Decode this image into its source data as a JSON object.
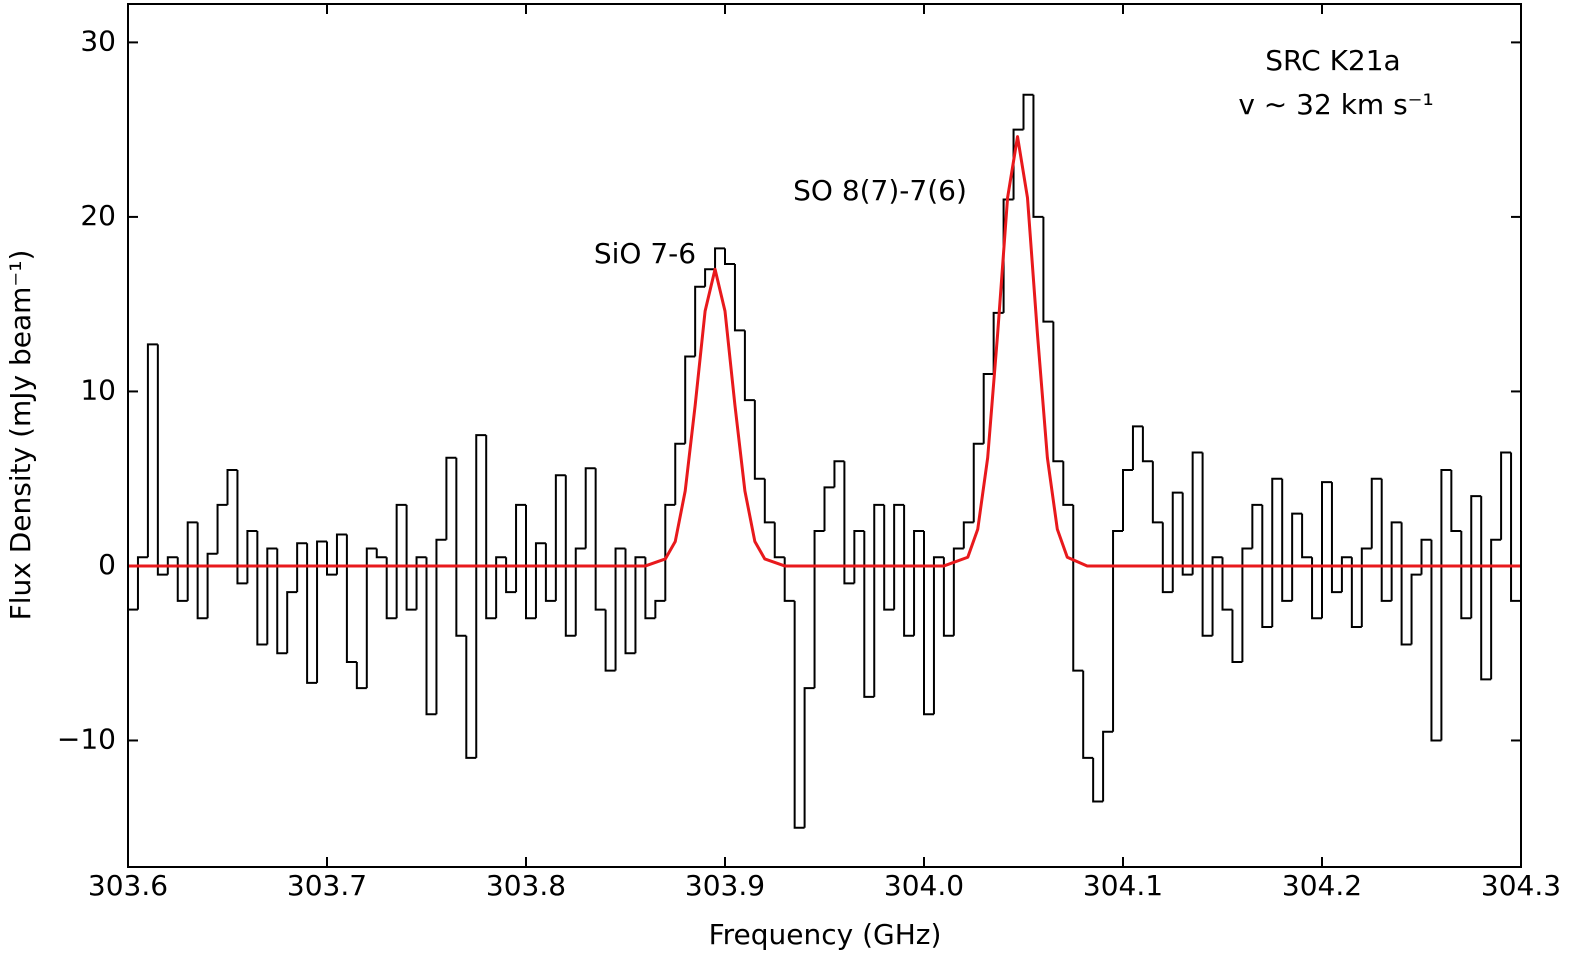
{
  "chart_data": {
    "type": "spectrum",
    "xlabel": "Frequency (GHz)",
    "ylabel": "Flux Density (mJy beam⁻¹)",
    "annotations": [
      "SiO 7-6",
      "SO 8(7)-7(6)",
      "SRC K21a",
      "v ∼ 32 km s⁻¹"
    ],
    "xlim": [
      303.6,
      304.3
    ],
    "ylim": [
      -17.25,
      32.2
    ],
    "xticks": [
      303.6,
      303.7,
      303.8,
      303.9,
      {
        "value": 304,
        "label": "304.0"
      },
      304.1,
      304.2,
      304.3
    ],
    "yticks": [
      {
        "value": -10,
        "label": "−10"
      },
      0,
      10,
      20,
      30
    ],
    "spectrum": {
      "color": "#000000",
      "bins": [
        303.6,
        303.605,
        303.61,
        303.615,
        303.62,
        303.625,
        303.63,
        303.635,
        303.64,
        303.645,
        303.65,
        303.655,
        303.66,
        303.665,
        303.67,
        303.675,
        303.68,
        303.685,
        303.69,
        303.695,
        303.7,
        303.705,
        303.71,
        303.715,
        303.72,
        303.725,
        303.73,
        303.735,
        303.74,
        303.745,
        303.75,
        303.755,
        303.76,
        303.765,
        303.77,
        303.775,
        303.78,
        303.785,
        303.79,
        303.795,
        303.8,
        303.805,
        303.81,
        303.815,
        303.82,
        303.825,
        303.83,
        303.835,
        303.84,
        303.845,
        303.85,
        303.855,
        303.86,
        303.865,
        303.87,
        303.875,
        303.88,
        303.885,
        303.89,
        303.895,
        303.9,
        303.905,
        303.91,
        303.915,
        303.92,
        303.925,
        303.93,
        303.935,
        303.94,
        303.945,
        303.95,
        303.955,
        303.96,
        303.965,
        303.97,
        303.975,
        303.98,
        303.985,
        303.99,
        303.995,
        304.0,
        304.005,
        304.01,
        304.015,
        304.02,
        304.025,
        304.03,
        304.035,
        304.04,
        304.045,
        304.05,
        304.055,
        304.06,
        304.065,
        304.07,
        304.075,
        304.08,
        304.085,
        304.09,
        304.095,
        304.1,
        304.105,
        304.11,
        304.115,
        304.12,
        304.125,
        304.13,
        304.135,
        304.14,
        304.145,
        304.15,
        304.155,
        304.16,
        304.165,
        304.17,
        304.175,
        304.18,
        304.185,
        304.19,
        304.195,
        304.2,
        304.205,
        304.21,
        304.215,
        304.22,
        304.225,
        304.23,
        304.235,
        304.24,
        304.245,
        304.25,
        304.255,
        304.26,
        304.265,
        304.27,
        304.275,
        304.28,
        304.285,
        304.29,
        304.295,
        304.3
      ],
      "values": [
        -2.5,
        0.5,
        12.7,
        -0.5,
        0.5,
        -2,
        2.5,
        -3,
        0.7,
        3.5,
        5.5,
        -1,
        2,
        -4.5,
        1,
        -5,
        -1.5,
        1.3,
        -6.7,
        1.4,
        -0.5,
        1.8,
        -5.5,
        -7,
        1,
        0.5,
        -3,
        3.5,
        -2.5,
        0.5,
        -8.5,
        1.5,
        6.2,
        -4,
        -11,
        7.5,
        -3,
        0.5,
        -1.5,
        3.5,
        -3,
        1.3,
        -2,
        5.2,
        -4,
        1,
        5.6,
        -2.5,
        -6,
        1,
        -5,
        0.5,
        -3,
        -2,
        3.5,
        7,
        12,
        16,
        17,
        18.2,
        17.3,
        13.5,
        9.5,
        5,
        2.5,
        0.5,
        -2,
        -15,
        -7,
        2,
        4.5,
        6,
        -1,
        2,
        -7.5,
        3.5,
        -2.5,
        3.5,
        -4,
        2,
        -8.5,
        0.5,
        -4,
        1,
        2.5,
        7,
        11,
        14.5,
        21,
        25,
        27,
        20,
        14,
        6,
        3.5,
        -6,
        -11,
        -13.5,
        -9.5,
        2,
        5.5,
        8,
        6,
        2.5,
        -1.5,
        4.2,
        -0.5,
        6.5,
        -4,
        0.5,
        -2.5,
        -5.5,
        1,
        3.5,
        -3.5,
        5,
        -2,
        3,
        0.5,
        -3,
        4.8,
        -1.5,
        0.5,
        -3.5,
        1,
        5,
        -2,
        2.5,
        -4.5,
        -0.5,
        1.5,
        -10,
        5.5,
        2,
        -3,
        4,
        -6.5,
        1.5,
        6.5,
        -2
      ]
    },
    "fit": {
      "color": "#e8191c",
      "x": [
        303.6,
        303.86,
        303.87,
        303.875,
        303.88,
        303.885,
        303.89,
        303.895,
        303.9,
        303.905,
        303.91,
        303.915,
        303.92,
        303.93,
        304.01,
        304.022,
        304.027,
        304.032,
        304.037,
        304.042,
        304.047,
        304.052,
        304.057,
        304.062,
        304.067,
        304.072,
        304.082,
        304.3
      ],
      "values": [
        0,
        0,
        0.4,
        1.4,
        4.3,
        9.2,
        14.6,
        17,
        14.6,
        9.2,
        4.3,
        1.4,
        0.4,
        0,
        0,
        0.5,
        2.1,
        6.2,
        13.3,
        21.1,
        24.6,
        21.1,
        13.3,
        6.2,
        2.1,
        0.5,
        0,
        0
      ]
    }
  }
}
